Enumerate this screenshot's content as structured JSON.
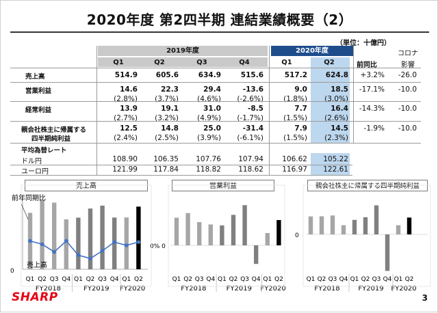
{
  "title": "2020年度 第2四半期 連結業績概要（2）",
  "unit": "（単位：十億円）",
  "headers": {
    "fy2019": "2019年度",
    "fy2020": "2020年度",
    "quarters": [
      "Q1",
      "Q2",
      "Q3",
      "Q4",
      "Q1",
      "Q2"
    ],
    "yoy": "前同比",
    "corona": [
      "コロナ",
      "影響"
    ]
  },
  "rows": [
    {
      "label": [
        "売上高"
      ],
      "values": [
        "514.9",
        "605.6",
        "634.9",
        "515.6",
        "517.2",
        "624.8"
      ],
      "ratios": [],
      "yoy": "+3.2%",
      "corona": "-26.0"
    },
    {
      "label": [
        "営業利益"
      ],
      "values": [
        "14.6",
        "22.3",
        "29.4",
        "-13.6",
        "9.0",
        "18.5"
      ],
      "ratios": [
        "(2.8%)",
        "(3.7%)",
        "(4.6%)",
        "(-2.6%)",
        "(1.8%)",
        "(3.0%)"
      ],
      "yoy": "-17.1%",
      "corona": "-10.0"
    },
    {
      "label": [
        "経常利益"
      ],
      "values": [
        "13.9",
        "19.1",
        "31.0",
        "-8.5",
        "7.7",
        "16.4"
      ],
      "ratios": [
        "(2.7%)",
        "(3.2%)",
        "(4.9%)",
        "(-1.7%)",
        "(1.5%)",
        "(2.6%)"
      ],
      "yoy": "-14.3%",
      "corona": "-10.0"
    },
    {
      "label": [
        "親会社株主に帰属する",
        "四半期純利益"
      ],
      "values": [
        "12.5",
        "14.8",
        "25.0",
        "-31.4",
        "7.9",
        "14.5"
      ],
      "ratios": [
        "(2.4%)",
        "(2.5%)",
        "(3.9%)",
        "(-6.1%)",
        "(1.5%)",
        "(2.3%)"
      ],
      "yoy": "-1.9%",
      "corona": "-10.0"
    }
  ],
  "fx": {
    "heading": "平均為替レート",
    "rows": [
      {
        "label": "ドル円",
        "values": [
          "108.90",
          "106.35",
          "107.76",
          "107.94",
          "106.62",
          "105.22"
        ]
      },
      {
        "label": "ユーロ円",
        "values": [
          "121.99",
          "117.84",
          "118.82",
          "118.62",
          "116.97",
          "122.61"
        ]
      }
    ]
  },
  "charts_text": {
    "x_quarters": [
      "Q1",
      "Q2",
      "Q3",
      "Q4",
      "Q1",
      "Q2",
      "Q3",
      "Q4",
      "Q1",
      "Q2"
    ],
    "x_years": [
      "FY2018",
      "FY2019",
      "FY2020"
    ],
    "sales_zero": "0",
    "zero_pct": "0% 0",
    "op_zero": "0",
    "yoy_label": "前年同期比",
    "sales_label": "売上高"
  },
  "chart_data": [
    {
      "type": "bar+line",
      "title": "売上高",
      "categories": [
        "FY2018 Q1",
        "FY2018 Q2",
        "FY2018 Q3",
        "FY2018 Q4",
        "FY2019 Q1",
        "FY2019 Q2",
        "FY2019 Q3",
        "FY2019 Q4",
        "FY2020 Q1",
        "FY2020 Q2"
      ],
      "series": [
        {
          "name": "売上高",
          "values": [
            563,
            688,
            665,
            498,
            515,
            606,
            635,
            516,
            517,
            625
          ]
        },
        {
          "name": "前年同期比",
          "values": [
            4,
            1,
            -6,
            4,
            -9,
            -12,
            -5,
            3,
            0,
            3
          ]
        }
      ],
      "ylim_left": [
        0,
        750
      ],
      "y2_zero_label": "0%",
      "colors": {
        "bar_past": "#a6a6a6",
        "bar_fy2019": "#808080",
        "bar_latest": "#000000",
        "line": "#4472c4"
      }
    },
    {
      "type": "bar",
      "title": "営業利益",
      "categories": [
        "FY2018 Q1",
        "FY2018 Q2",
        "FY2018 Q3",
        "FY2018 Q4",
        "FY2019 Q1",
        "FY2019 Q2",
        "FY2019 Q3",
        "FY2019 Q4",
        "FY2020 Q1",
        "FY2020 Q2"
      ],
      "values": [
        20.2,
        23.6,
        17.0,
        15.3,
        14.6,
        22.3,
        29.4,
        -13.6,
        9.0,
        18.5
      ],
      "zero_label": "0"
    },
    {
      "type": "bar",
      "title": "親会社株主に帰属する四半期純利益",
      "categories": [
        "FY2018 Q1",
        "FY2018 Q2",
        "FY2018 Q3",
        "FY2018 Q4",
        "FY2019 Q1",
        "FY2019 Q2",
        "FY2019 Q3",
        "FY2019 Q4",
        "FY2020 Q1",
        "FY2020 Q2"
      ],
      "values": [
        15.5,
        15.6,
        16.3,
        7.9,
        12.5,
        14.8,
        25.0,
        -31.4,
        7.9,
        14.5
      ],
      "zero_label": "0"
    }
  ],
  "logo": "SHARP",
  "page_number": "3"
}
